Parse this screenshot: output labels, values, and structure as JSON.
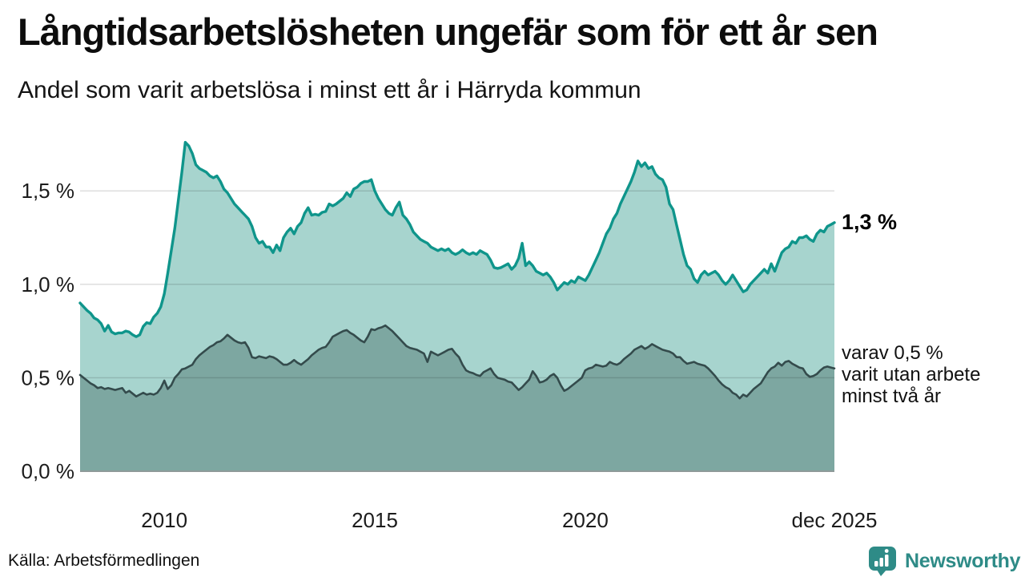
{
  "header": {
    "title": "Långtidsarbetslösheten ungefär som för ett år sen",
    "subtitle": "Andel som varit arbetslösa i minst ett år i Härryda kommun"
  },
  "chart_data": {
    "type": "area",
    "unit": "percent",
    "frequency": "monthly",
    "period_start": "2008-01",
    "period_end": "2025-12",
    "ylim": [
      0,
      1.8
    ],
    "grid": true,
    "legend_position": "right-annotations",
    "y_ticks": [
      {
        "value": 0.0,
        "label": "0,0 %"
      },
      {
        "value": 0.5,
        "label": "0,5 %"
      },
      {
        "value": 1.0,
        "label": "1,0 %"
      },
      {
        "value": 1.5,
        "label": "1,5 %"
      }
    ],
    "x_ticks": [
      {
        "month_index": 24,
        "label": "2010"
      },
      {
        "month_index": 84,
        "label": "2015"
      },
      {
        "month_index": 144,
        "label": "2020"
      },
      {
        "month_index": 215,
        "label": "dec 2025"
      }
    ],
    "series": [
      {
        "id": "minst-ett-ar",
        "name": "Arbetslösa i minst ett år",
        "line_color": "#0f958b",
        "fill_color": "#a7d4ce",
        "line_width": 3.4,
        "end_value": 1.3,
        "values": [
          0.9,
          0.88,
          0.86,
          0.845,
          0.82,
          0.81,
          0.79,
          0.75,
          0.78,
          0.745,
          0.735,
          0.74,
          0.74,
          0.75,
          0.745,
          0.73,
          0.72,
          0.73,
          0.775,
          0.795,
          0.79,
          0.825,
          0.845,
          0.88,
          0.95,
          1.06,
          1.18,
          1.3,
          1.45,
          1.6,
          1.76,
          1.74,
          1.7,
          1.64,
          1.62,
          1.61,
          1.6,
          1.58,
          1.57,
          1.58,
          1.55,
          1.51,
          1.49,
          1.46,
          1.43,
          1.41,
          1.39,
          1.37,
          1.35,
          1.31,
          1.25,
          1.22,
          1.23,
          1.2,
          1.2,
          1.17,
          1.21,
          1.18,
          1.25,
          1.28,
          1.3,
          1.27,
          1.31,
          1.33,
          1.38,
          1.41,
          1.37,
          1.375,
          1.37,
          1.385,
          1.39,
          1.43,
          1.42,
          1.43,
          1.445,
          1.46,
          1.49,
          1.47,
          1.51,
          1.52,
          1.54,
          1.55,
          1.55,
          1.56,
          1.5,
          1.46,
          1.43,
          1.4,
          1.38,
          1.37,
          1.41,
          1.44,
          1.37,
          1.35,
          1.32,
          1.28,
          1.26,
          1.24,
          1.23,
          1.22,
          1.2,
          1.19,
          1.18,
          1.19,
          1.18,
          1.19,
          1.17,
          1.16,
          1.17,
          1.185,
          1.17,
          1.16,
          1.17,
          1.16,
          1.18,
          1.17,
          1.16,
          1.13,
          1.09,
          1.085,
          1.09,
          1.1,
          1.11,
          1.08,
          1.1,
          1.14,
          1.22,
          1.1,
          1.12,
          1.1,
          1.07,
          1.06,
          1.05,
          1.06,
          1.04,
          1.01,
          0.97,
          0.99,
          1.01,
          1.0,
          1.02,
          1.01,
          1.04,
          1.03,
          1.02,
          1.05,
          1.09,
          1.13,
          1.17,
          1.22,
          1.27,
          1.3,
          1.35,
          1.38,
          1.43,
          1.47,
          1.51,
          1.55,
          1.6,
          1.66,
          1.63,
          1.65,
          1.62,
          1.63,
          1.59,
          1.57,
          1.56,
          1.52,
          1.43,
          1.4,
          1.32,
          1.24,
          1.16,
          1.1,
          1.08,
          1.03,
          1.01,
          1.05,
          1.07,
          1.05,
          1.06,
          1.07,
          1.05,
          1.02,
          1.0,
          1.02,
          1.05,
          1.02,
          0.99,
          0.96,
          0.97,
          1.0,
          1.02,
          1.04,
          1.06,
          1.08,
          1.06,
          1.11,
          1.07,
          1.12,
          1.17,
          1.19,
          1.2,
          1.23,
          1.22,
          1.25,
          1.25,
          1.26,
          1.24,
          1.23,
          1.27,
          1.29,
          1.28,
          1.31,
          1.32,
          1.33
        ]
      },
      {
        "id": "minst-tva-ar",
        "name": "varav utan arbete minst två år",
        "line_color": "#344b4c",
        "fill_color": "#7da7a1",
        "line_width": 2.6,
        "end_value": 0.5,
        "values": [
          0.515,
          0.5,
          0.485,
          0.47,
          0.46,
          0.445,
          0.45,
          0.44,
          0.445,
          0.44,
          0.435,
          0.44,
          0.445,
          0.42,
          0.43,
          0.415,
          0.4,
          0.41,
          0.42,
          0.41,
          0.415,
          0.41,
          0.42,
          0.445,
          0.485,
          0.44,
          0.46,
          0.5,
          0.52,
          0.545,
          0.55,
          0.56,
          0.57,
          0.6,
          0.62,
          0.635,
          0.65,
          0.665,
          0.675,
          0.69,
          0.695,
          0.71,
          0.73,
          0.715,
          0.7,
          0.69,
          0.685,
          0.69,
          0.66,
          0.61,
          0.605,
          0.615,
          0.61,
          0.605,
          0.615,
          0.61,
          0.6,
          0.585,
          0.57,
          0.57,
          0.58,
          0.595,
          0.58,
          0.57,
          0.585,
          0.6,
          0.62,
          0.635,
          0.65,
          0.66,
          0.665,
          0.69,
          0.72,
          0.73,
          0.74,
          0.75,
          0.755,
          0.74,
          0.73,
          0.715,
          0.7,
          0.69,
          0.72,
          0.76,
          0.755,
          0.765,
          0.77,
          0.78,
          0.765,
          0.75,
          0.73,
          0.71,
          0.69,
          0.67,
          0.66,
          0.655,
          0.65,
          0.64,
          0.63,
          0.585,
          0.64,
          0.63,
          0.62,
          0.63,
          0.64,
          0.65,
          0.655,
          0.63,
          0.61,
          0.57,
          0.54,
          0.53,
          0.525,
          0.515,
          0.51,
          0.53,
          0.54,
          0.55,
          0.52,
          0.5,
          0.495,
          0.49,
          0.48,
          0.475,
          0.455,
          0.435,
          0.45,
          0.47,
          0.49,
          0.535,
          0.51,
          0.475,
          0.48,
          0.49,
          0.51,
          0.52,
          0.5,
          0.46,
          0.43,
          0.44,
          0.455,
          0.47,
          0.485,
          0.5,
          0.54,
          0.55,
          0.555,
          0.57,
          0.565,
          0.56,
          0.565,
          0.585,
          0.575,
          0.57,
          0.58,
          0.6,
          0.615,
          0.63,
          0.65,
          0.66,
          0.67,
          0.655,
          0.665,
          0.68,
          0.67,
          0.66,
          0.65,
          0.645,
          0.64,
          0.63,
          0.61,
          0.61,
          0.59,
          0.575,
          0.58,
          0.585,
          0.575,
          0.57,
          0.565,
          0.55,
          0.53,
          0.51,
          0.485,
          0.465,
          0.45,
          0.44,
          0.42,
          0.41,
          0.39,
          0.41,
          0.4,
          0.42,
          0.44,
          0.455,
          0.47,
          0.5,
          0.53,
          0.55,
          0.56,
          0.58,
          0.565,
          0.585,
          0.59,
          0.575,
          0.565,
          0.555,
          0.55,
          0.52,
          0.505,
          0.51,
          0.52,
          0.54,
          0.555,
          0.56,
          0.555,
          0.55
        ]
      }
    ],
    "annotations": {
      "end_label": "1,3 %",
      "note_line1": "varav 0,5 %",
      "note_line2": "varit utan arbete",
      "note_line3": "minst två år"
    }
  },
  "footer": {
    "source": "Källa: Arbetsförmedlingen",
    "brand": "Newsworthy"
  },
  "colors": {
    "accent_teal": "#0f958b",
    "light_fill": "#a7d4ce",
    "dark_fill": "#7da7a1",
    "dark_line": "#344b4c",
    "gridline": "#dcdcdc",
    "baseline": "#8f9a99",
    "brand_teal": "#2e8b87",
    "text": "#0d0d0d"
  }
}
